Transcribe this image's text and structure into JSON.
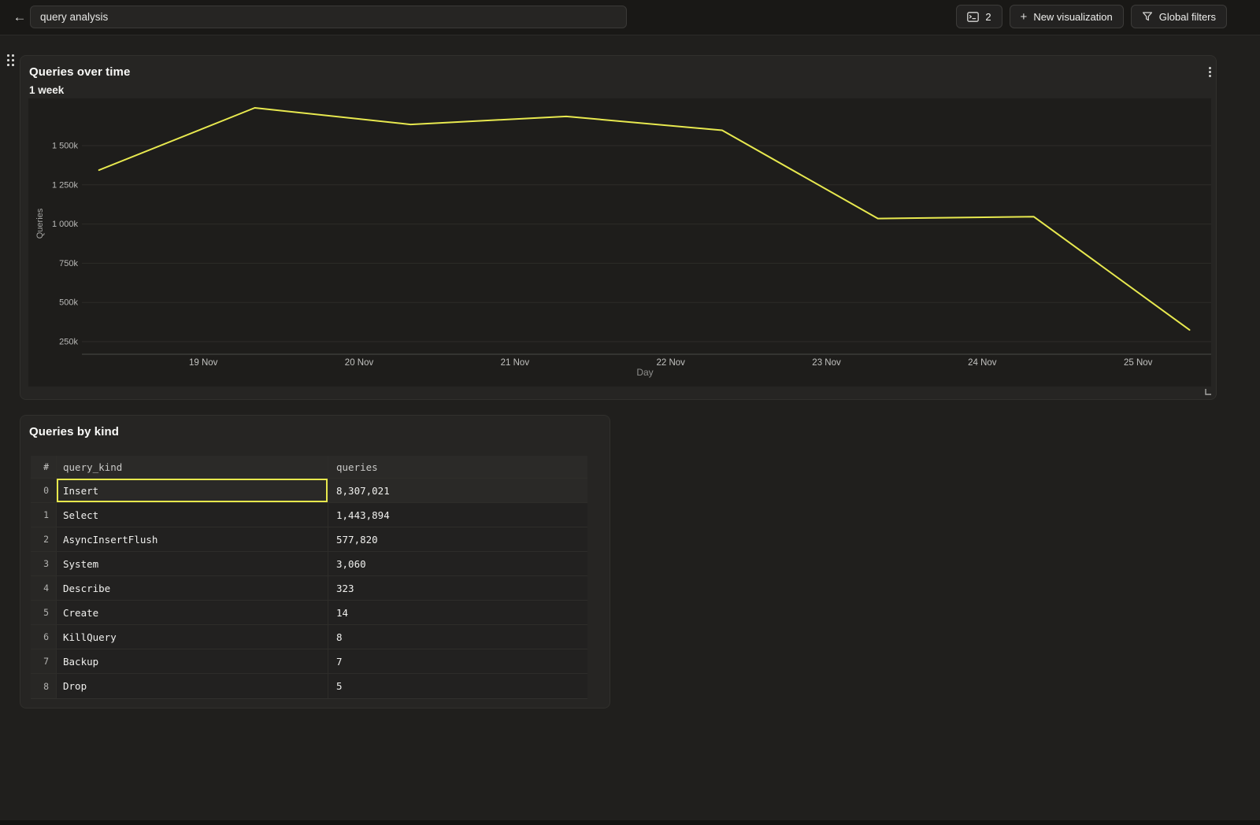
{
  "topbar": {
    "back_label": "←",
    "title_input": {
      "value": "query analysis"
    },
    "tabs_button": {
      "count": "2"
    },
    "new_visualization_button": {
      "plus": "+",
      "label": "New visualization"
    },
    "global_filters_button": {
      "label": "Global filters"
    }
  },
  "chart_panel": {
    "title": "Queries over time",
    "subtitle": "1 week"
  },
  "table_panel": {
    "title": "Queries by kind",
    "columns": [
      "#",
      "query_kind",
      "queries"
    ],
    "rows": [
      {
        "index": "0",
        "query_kind": "Insert",
        "queries": "8,307,021",
        "selected": true
      },
      {
        "index": "1",
        "query_kind": "Select",
        "queries": "1,443,894",
        "selected": false
      },
      {
        "index": "2",
        "query_kind": "AsyncInsertFlush",
        "queries": "577,820",
        "selected": false
      },
      {
        "index": "3",
        "query_kind": "System",
        "queries": "3,060",
        "selected": false
      },
      {
        "index": "4",
        "query_kind": "Describe",
        "queries": "323",
        "selected": false
      },
      {
        "index": "5",
        "query_kind": "Create",
        "queries": "14",
        "selected": false
      },
      {
        "index": "6",
        "query_kind": "KillQuery",
        "queries": "8",
        "selected": false
      },
      {
        "index": "7",
        "query_kind": "Backup",
        "queries": "7",
        "selected": false
      },
      {
        "index": "8",
        "query_kind": "Drop",
        "queries": "5",
        "selected": false
      }
    ]
  },
  "chart_data": {
    "type": "line",
    "title": "Queries over time",
    "subtitle": "1 week",
    "xlabel": "Day",
    "ylabel": "Queries",
    "x_ticks": [
      {
        "label": "19 Nov",
        "day": 1
      },
      {
        "label": "20 Nov",
        "day": 2
      },
      {
        "label": "21 Nov",
        "day": 3
      },
      {
        "label": "22 Nov",
        "day": 4
      },
      {
        "label": "23 Nov",
        "day": 5
      },
      {
        "label": "24 Nov",
        "day": 6
      },
      {
        "label": "25 Nov",
        "day": 7
      }
    ],
    "y_ticks": [
      {
        "label": "250k",
        "value": 250000
      },
      {
        "label": "500k",
        "value": 500000
      },
      {
        "label": "750k",
        "value": 750000
      },
      {
        "label": "1 000k",
        "value": 1000000
      },
      {
        "label": "1 250k",
        "value": 1250000
      },
      {
        "label": "1 500k",
        "value": 1500000
      }
    ],
    "ylim": [
      170000,
      1800000
    ],
    "grid": true,
    "legend": "none",
    "series": [
      {
        "name": "Queries",
        "color": "#e8e94f",
        "points": [
          {
            "day": 0.33,
            "value": 1344000
          },
          {
            "day": 1.33,
            "value": 1741000
          },
          {
            "day": 2.33,
            "value": 1635000
          },
          {
            "day": 3.33,
            "value": 1686000
          },
          {
            "day": 4.33,
            "value": 1598000
          },
          {
            "day": 5.33,
            "value": 1035000
          },
          {
            "day": 6.33,
            "value": 1047000
          },
          {
            "day": 7.33,
            "value": 325000
          }
        ]
      }
    ]
  },
  "colors": {
    "accent": "#e8e94f",
    "panel_bg": "#262523",
    "page_bg": "#201f1d",
    "grid_line": "#2d2c29",
    "axis_line": "#4a4a47"
  }
}
